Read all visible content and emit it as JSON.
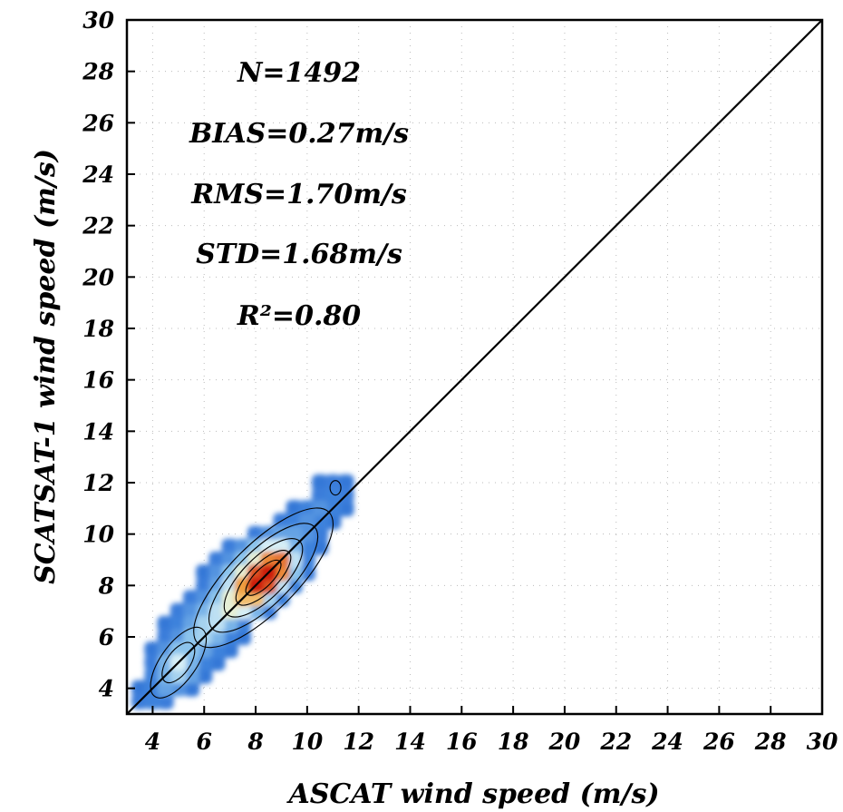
{
  "chart_data": {
    "type": "heatmap",
    "subtype": "density contour scatter",
    "xlabel": "ASCAT wind speed (m/s)",
    "ylabel": "SCATSAT-1 wind speed (m/s)",
    "xlim": [
      3,
      30
    ],
    "ylim": [
      3,
      30
    ],
    "xticks": [
      4,
      6,
      8,
      10,
      12,
      14,
      16,
      18,
      20,
      22,
      24,
      26,
      28,
      30
    ],
    "yticks": [
      4,
      6,
      8,
      10,
      12,
      14,
      16,
      18,
      20,
      22,
      24,
      26,
      28,
      30
    ],
    "grid": "dotted",
    "reference_line": {
      "type": "1:1",
      "from": [
        3,
        3
      ],
      "to": [
        30,
        30
      ]
    },
    "stats": [
      {
        "label": "N",
        "text": "N=1492"
      },
      {
        "label": "BIAS",
        "text": "BIAS=0.27m/s"
      },
      {
        "label": "RMS",
        "text": "RMS=1.70m/s"
      },
      {
        "label": "STD",
        "text": "STD=1.68m/s"
      },
      {
        "label": "R2",
        "text": "R²=0.80"
      }
    ],
    "density_peak": {
      "x": 8.3,
      "y": 8.3
    },
    "colors": {
      "low": "#2a6fd6",
      "mid": "#8fc8ee",
      "high_light": "#f6f0b4",
      "high": "#f0a040",
      "peak": "#cc1f10",
      "grid": "#bbbbbb",
      "line": "#000000"
    },
    "density_cells": [
      {
        "x": 3.5,
        "y": 3.5,
        "v": 0.3
      },
      {
        "x": 4.0,
        "y": 3.5,
        "v": 0.35
      },
      {
        "x": 4.5,
        "y": 3.5,
        "v": 0.3
      },
      {
        "x": 3.5,
        "y": 4.0,
        "v": 0.25
      },
      {
        "x": 4.0,
        "y": 4.0,
        "v": 0.35
      },
      {
        "x": 4.5,
        "y": 4.0,
        "v": 0.45
      },
      {
        "x": 5.0,
        "y": 4.0,
        "v": 0.4
      },
      {
        "x": 5.5,
        "y": 4.0,
        "v": 0.25
      },
      {
        "x": 4.0,
        "y": 4.5,
        "v": 0.35
      },
      {
        "x": 4.5,
        "y": 4.5,
        "v": 0.5
      },
      {
        "x": 5.0,
        "y": 4.5,
        "v": 0.6
      },
      {
        "x": 5.5,
        "y": 4.5,
        "v": 0.45
      },
      {
        "x": 6.0,
        "y": 4.5,
        "v": 0.25
      },
      {
        "x": 4.0,
        "y": 5.0,
        "v": 0.3
      },
      {
        "x": 4.5,
        "y": 5.0,
        "v": 0.5
      },
      {
        "x": 5.0,
        "y": 5.0,
        "v": 0.7
      },
      {
        "x": 5.5,
        "y": 5.0,
        "v": 0.5
      },
      {
        "x": 6.0,
        "y": 5.0,
        "v": 0.35
      },
      {
        "x": 6.5,
        "y": 5.0,
        "v": 0.25
      },
      {
        "x": 4.0,
        "y": 5.5,
        "v": 0.25
      },
      {
        "x": 4.5,
        "y": 5.5,
        "v": 0.4
      },
      {
        "x": 5.0,
        "y": 5.5,
        "v": 0.55
      },
      {
        "x": 5.5,
        "y": 5.5,
        "v": 0.55
      },
      {
        "x": 6.0,
        "y": 5.5,
        "v": 0.45
      },
      {
        "x": 6.5,
        "y": 5.5,
        "v": 0.35
      },
      {
        "x": 7.0,
        "y": 5.5,
        "v": 0.25
      },
      {
        "x": 4.5,
        "y": 6.0,
        "v": 0.3
      },
      {
        "x": 5.0,
        "y": 6.0,
        "v": 0.4
      },
      {
        "x": 5.5,
        "y": 6.0,
        "v": 0.55
      },
      {
        "x": 6.0,
        "y": 6.0,
        "v": 0.6
      },
      {
        "x": 6.5,
        "y": 6.0,
        "v": 0.5
      },
      {
        "x": 7.0,
        "y": 6.0,
        "v": 0.35
      },
      {
        "x": 7.5,
        "y": 6.0,
        "v": 0.25
      },
      {
        "x": 4.5,
        "y": 6.5,
        "v": 0.25
      },
      {
        "x": 5.0,
        "y": 6.5,
        "v": 0.35
      },
      {
        "x": 5.5,
        "y": 6.5,
        "v": 0.45
      },
      {
        "x": 6.0,
        "y": 6.5,
        "v": 0.6
      },
      {
        "x": 6.5,
        "y": 6.5,
        "v": 0.65
      },
      {
        "x": 7.0,
        "y": 6.5,
        "v": 0.5
      },
      {
        "x": 7.5,
        "y": 6.5,
        "v": 0.35
      },
      {
        "x": 5.0,
        "y": 7.0,
        "v": 0.3
      },
      {
        "x": 5.5,
        "y": 7.0,
        "v": 0.4
      },
      {
        "x": 6.0,
        "y": 7.0,
        "v": 0.5
      },
      {
        "x": 6.5,
        "y": 7.0,
        "v": 0.65
      },
      {
        "x": 7.0,
        "y": 7.0,
        "v": 0.75
      },
      {
        "x": 7.5,
        "y": 7.0,
        "v": 0.7
      },
      {
        "x": 8.0,
        "y": 7.0,
        "v": 0.5
      },
      {
        "x": 8.5,
        "y": 7.0,
        "v": 0.3
      },
      {
        "x": 5.5,
        "y": 7.5,
        "v": 0.3
      },
      {
        "x": 6.0,
        "y": 7.5,
        "v": 0.4
      },
      {
        "x": 6.5,
        "y": 7.5,
        "v": 0.55
      },
      {
        "x": 7.0,
        "y": 7.5,
        "v": 0.75
      },
      {
        "x": 7.5,
        "y": 7.5,
        "v": 0.85
      },
      {
        "x": 8.0,
        "y": 7.5,
        "v": 0.85
      },
      {
        "x": 8.5,
        "y": 7.5,
        "v": 0.6
      },
      {
        "x": 9.0,
        "y": 7.5,
        "v": 0.35
      },
      {
        "x": 6.0,
        "y": 8.0,
        "v": 0.3
      },
      {
        "x": 6.5,
        "y": 8.0,
        "v": 0.45
      },
      {
        "x": 7.0,
        "y": 8.0,
        "v": 0.65
      },
      {
        "x": 7.5,
        "y": 8.0,
        "v": 0.88
      },
      {
        "x": 8.0,
        "y": 8.0,
        "v": 1.0
      },
      {
        "x": 8.5,
        "y": 8.0,
        "v": 0.95
      },
      {
        "x": 9.0,
        "y": 8.0,
        "v": 0.65
      },
      {
        "x": 9.5,
        "y": 8.0,
        "v": 0.35
      },
      {
        "x": 6.0,
        "y": 8.5,
        "v": 0.25
      },
      {
        "x": 6.5,
        "y": 8.5,
        "v": 0.4
      },
      {
        "x": 7.0,
        "y": 8.5,
        "v": 0.55
      },
      {
        "x": 7.5,
        "y": 8.5,
        "v": 0.75
      },
      {
        "x": 8.0,
        "y": 8.5,
        "v": 0.95
      },
      {
        "x": 8.5,
        "y": 8.5,
        "v": 1.0
      },
      {
        "x": 9.0,
        "y": 8.5,
        "v": 0.9
      },
      {
        "x": 9.5,
        "y": 8.5,
        "v": 0.55
      },
      {
        "x": 10.0,
        "y": 8.5,
        "v": 0.3
      },
      {
        "x": 6.5,
        "y": 9.0,
        "v": 0.3
      },
      {
        "x": 7.0,
        "y": 9.0,
        "v": 0.4
      },
      {
        "x": 7.5,
        "y": 9.0,
        "v": 0.55
      },
      {
        "x": 8.0,
        "y": 9.0,
        "v": 0.75
      },
      {
        "x": 8.5,
        "y": 9.0,
        "v": 0.9
      },
      {
        "x": 9.0,
        "y": 9.0,
        "v": 0.92
      },
      {
        "x": 9.5,
        "y": 9.0,
        "v": 0.65
      },
      {
        "x": 10.0,
        "y": 9.0,
        "v": 0.35
      },
      {
        "x": 7.0,
        "y": 9.5,
        "v": 0.3
      },
      {
        "x": 7.5,
        "y": 9.5,
        "v": 0.4
      },
      {
        "x": 8.0,
        "y": 9.5,
        "v": 0.55
      },
      {
        "x": 8.5,
        "y": 9.5,
        "v": 0.7
      },
      {
        "x": 9.0,
        "y": 9.5,
        "v": 0.7
      },
      {
        "x": 9.5,
        "y": 9.5,
        "v": 0.5
      },
      {
        "x": 10.0,
        "y": 9.5,
        "v": 0.35
      },
      {
        "x": 10.5,
        "y": 9.5,
        "v": 0.25
      },
      {
        "x": 8.0,
        "y": 10.0,
        "v": 0.3
      },
      {
        "x": 8.5,
        "y": 10.0,
        "v": 0.4
      },
      {
        "x": 9.0,
        "y": 10.0,
        "v": 0.45
      },
      {
        "x": 9.5,
        "y": 10.0,
        "v": 0.45
      },
      {
        "x": 10.0,
        "y": 10.0,
        "v": 0.4
      },
      {
        "x": 10.5,
        "y": 10.0,
        "v": 0.3
      },
      {
        "x": 9.0,
        "y": 10.5,
        "v": 0.3
      },
      {
        "x": 9.5,
        "y": 10.5,
        "v": 0.35
      },
      {
        "x": 10.0,
        "y": 10.5,
        "v": 0.4
      },
      {
        "x": 10.5,
        "y": 10.5,
        "v": 0.35
      },
      {
        "x": 11.0,
        "y": 10.5,
        "v": 0.25
      },
      {
        "x": 9.5,
        "y": 11.0,
        "v": 0.25
      },
      {
        "x": 10.0,
        "y": 11.0,
        "v": 0.35
      },
      {
        "x": 10.5,
        "y": 11.0,
        "v": 0.4
      },
      {
        "x": 11.0,
        "y": 11.0,
        "v": 0.35
      },
      {
        "x": 11.5,
        "y": 11.0,
        "v": 0.25
      },
      {
        "x": 10.5,
        "y": 11.5,
        "v": 0.3
      },
      {
        "x": 11.0,
        "y": 11.5,
        "v": 0.35
      },
      {
        "x": 11.5,
        "y": 11.5,
        "v": 0.3
      },
      {
        "x": 10.5,
        "y": 12.0,
        "v": 0.25
      },
      {
        "x": 11.0,
        "y": 12.0,
        "v": 0.3
      },
      {
        "x": 11.5,
        "y": 12.0,
        "v": 0.25
      }
    ]
  }
}
